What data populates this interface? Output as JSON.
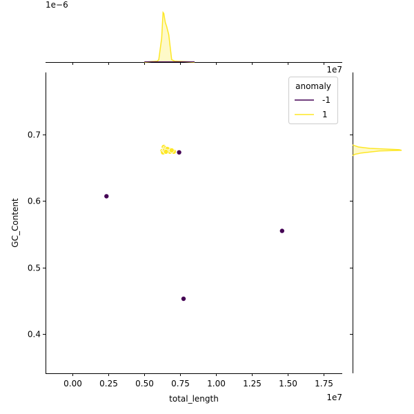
{
  "figure": {
    "x_offset_label": "1e7",
    "density_offset_label": "1e−6"
  },
  "chart_data": {
    "type": "scatter",
    "xlabel": "total_length",
    "ylabel": "GC_Content",
    "xlim": [
      -1900000,
      18800000
    ],
    "ylim": [
      0.341,
      0.793
    ],
    "xticks": [
      0,
      2500000,
      5000000,
      7500000,
      10000000,
      12500000,
      15000000,
      17500000
    ],
    "xtick_labels": [
      "0.00",
      "0.25",
      "0.50",
      "0.75",
      "1.00",
      "1.25",
      "1.50",
      "1.75"
    ],
    "yticks": [
      0.4,
      0.5,
      0.6,
      0.7
    ],
    "ytick_labels": [
      "0.4",
      "0.5",
      "0.6",
      "0.7"
    ],
    "grid": false,
    "legend": {
      "title": "anomaly",
      "placement": "top-right"
    },
    "series": [
      {
        "name": "-1",
        "color": "#440154",
        "points": [
          {
            "x": 2350000,
            "y": 0.607
          },
          {
            "x": 7420000,
            "y": 0.673
          },
          {
            "x": 7730000,
            "y": 0.453
          },
          {
            "x": 14600000,
            "y": 0.555
          }
        ]
      },
      {
        "name": "1",
        "color": "#fde725",
        "points": [
          {
            "x": 6250000,
            "y": 0.675
          },
          {
            "x": 6350000,
            "y": 0.681
          },
          {
            "x": 6450000,
            "y": 0.679
          },
          {
            "x": 6550000,
            "y": 0.677
          },
          {
            "x": 6650000,
            "y": 0.676
          },
          {
            "x": 6750000,
            "y": 0.677
          },
          {
            "x": 6850000,
            "y": 0.675
          },
          {
            "x": 6950000,
            "y": 0.674
          },
          {
            "x": 7050000,
            "y": 0.674
          },
          {
            "x": 6300000,
            "y": 0.673
          },
          {
            "x": 6420000,
            "y": 0.676
          },
          {
            "x": 6600000,
            "y": 0.678
          },
          {
            "x": 6780000,
            "y": 0.674
          },
          {
            "x": 6900000,
            "y": 0.676
          },
          {
            "x": 6500000,
            "y": 0.674
          }
        ]
      }
    ],
    "marginal_x": {
      "color": "#fde725",
      "points": [
        {
          "x": 5000000,
          "y": 0.0
        },
        {
          "x": 5900000,
          "y": 0.02
        },
        {
          "x": 6000000,
          "y": 0.05
        },
        {
          "x": 6200000,
          "y": 0.48
        },
        {
          "x": 6300000,
          "y": 1.0
        },
        {
          "x": 6350000,
          "y": 0.98
        },
        {
          "x": 6450000,
          "y": 0.8
        },
        {
          "x": 6550000,
          "y": 0.72
        },
        {
          "x": 6700000,
          "y": 0.55
        },
        {
          "x": 6800000,
          "y": 0.3
        },
        {
          "x": 6900000,
          "y": 0.05
        },
        {
          "x": 7100000,
          "y": 0.02
        },
        {
          "x": 8500000,
          "y": 0.0
        }
      ],
      "line_extent": [
        5000000,
        8500000
      ],
      "series_name": "1",
      "dark_color": "#440154"
    },
    "marginal_y": {
      "color": "#fde725",
      "points": [
        {
          "y": 0.668,
          "x": 0.0
        },
        {
          "y": 0.67,
          "x": 0.05
        },
        {
          "y": 0.672,
          "x": 0.18
        },
        {
          "y": 0.675,
          "x": 0.55
        },
        {
          "y": 0.676,
          "x": 1.0
        },
        {
          "y": 0.677,
          "x": 0.95
        },
        {
          "y": 0.679,
          "x": 0.35
        },
        {
          "y": 0.681,
          "x": 0.12
        },
        {
          "y": 0.684,
          "x": 0.0
        }
      ]
    }
  }
}
